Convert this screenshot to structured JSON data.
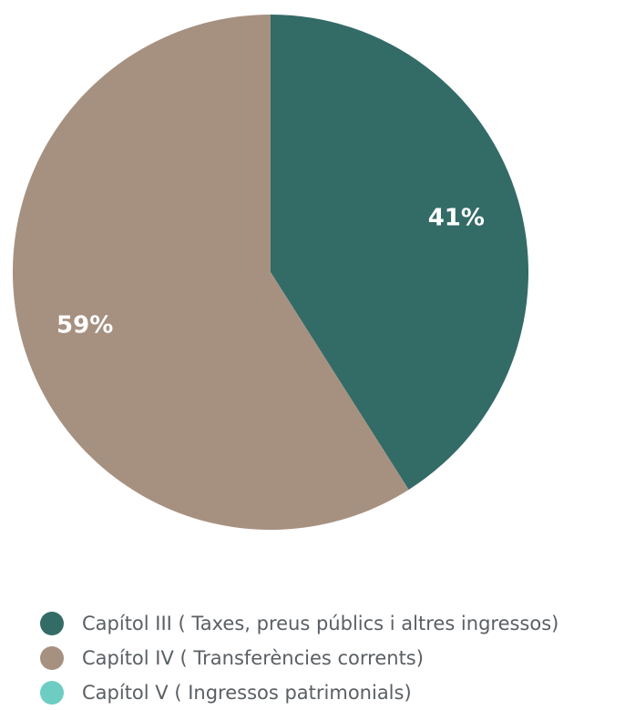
{
  "chart_data": {
    "type": "pie",
    "categories": [
      "Capítol III ( Taxes, preus públics i altres ingressos)",
      "Capítol IV ( Transferències corrents)",
      "Capítol V ( Ingressos patrimonials)"
    ],
    "values": [
      41,
      59,
      0
    ],
    "labels": [
      "41%",
      "59%",
      ""
    ],
    "colors": [
      "#336b67",
      "#a69181",
      "#6dcdc2"
    ],
    "legend_position": "bottom"
  }
}
